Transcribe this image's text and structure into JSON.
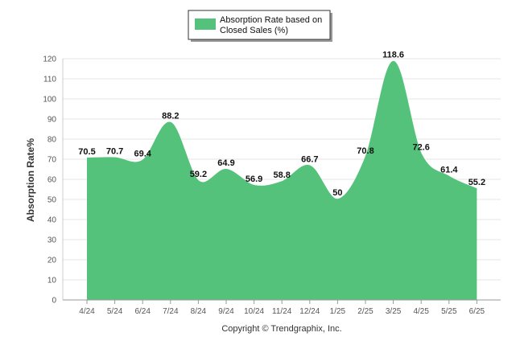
{
  "chart_data": {
    "type": "area",
    "categories": [
      "4/24",
      "5/24",
      "6/24",
      "7/24",
      "8/24",
      "9/24",
      "10/24",
      "11/24",
      "12/24",
      "1/25",
      "2/25",
      "3/25",
      "4/25",
      "5/25",
      "6/25"
    ],
    "series": [
      {
        "name": "Absorption Rate based on Closed Sales (%)",
        "legend_lines": [
          "Absorption Rate based on",
          "Closed Sales (%)"
        ],
        "values": [
          70.5,
          70.7,
          69.4,
          88.2,
          59.2,
          64.9,
          56.9,
          58.8,
          66.7,
          50,
          70.8,
          118.6,
          72.6,
          61.4,
          55.2
        ],
        "color": "#55c27b"
      }
    ],
    "ylabel": "Absorption Rate%",
    "ylim": [
      0,
      120
    ],
    "yticks": [
      0,
      10,
      20,
      30,
      40,
      50,
      60,
      70,
      80,
      90,
      100,
      110,
      120
    ],
    "grid": true,
    "legend_position": "top-center"
  },
  "footer": {
    "copyright": "Copyright © Trendgraphix, Inc."
  }
}
